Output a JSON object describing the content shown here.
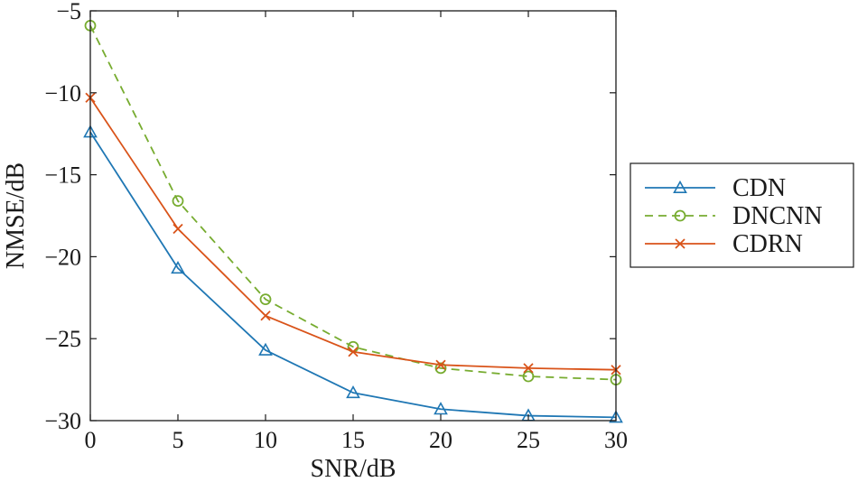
{
  "chart_data": {
    "type": "line",
    "xlabel": "SNR/dB",
    "ylabel": "NMSE/dB",
    "xlim": [
      0,
      30
    ],
    "ylim": [
      -30,
      -5
    ],
    "xticks": [
      0,
      5,
      10,
      15,
      20,
      25,
      30
    ],
    "yticks": [
      -5,
      -10,
      -15,
      -20,
      -25,
      -30
    ],
    "xtick_labels": [
      "0",
      "5",
      "10",
      "15",
      "20",
      "25",
      "30"
    ],
    "ytick_labels": [
      "−5",
      "−10",
      "−15",
      "−20",
      "−25",
      "−30"
    ],
    "grid": false,
    "legend_position": "right, outside",
    "x": [
      0,
      5,
      10,
      15,
      20,
      25,
      30
    ],
    "series": [
      {
        "name": "CDN",
        "values": [
          -12.4,
          -20.7,
          -25.7,
          -28.3,
          -29.3,
          -29.7,
          -29.8
        ],
        "color": "#1f77b4",
        "marker": "triangle",
        "dash": "solid"
      },
      {
        "name": "DNCNN",
        "values": [
          -5.9,
          -16.6,
          -22.6,
          -25.5,
          -26.8,
          -27.3,
          -27.5
        ],
        "color": "#77ac30",
        "marker": "circle",
        "dash": "dashed"
      },
      {
        "name": "CDRN",
        "values": [
          -10.3,
          -18.3,
          -23.6,
          -25.8,
          -26.6,
          -26.8,
          -26.9
        ],
        "color": "#d95319",
        "marker": "x",
        "dash": "solid"
      }
    ]
  }
}
